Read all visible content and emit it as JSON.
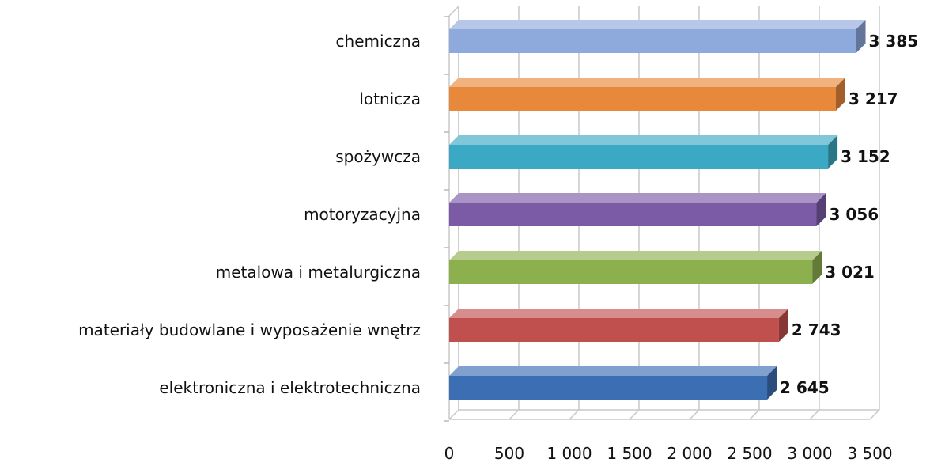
{
  "chart_data": {
    "type": "bar",
    "orientation": "horizontal",
    "style": "3d",
    "categories": [
      "chemiczna",
      "lotnicza",
      "spożywcza",
      "motoryzacyjna",
      "metalowa i metalurgiczna",
      "materiały budowlane i wyposażenie wnętrz",
      "elektroniczna i elektrotechniczna"
    ],
    "values": [
      3385,
      3217,
      3152,
      3056,
      3021,
      2743,
      2645
    ],
    "value_labels": [
      "3 385",
      "3 217",
      "3 152",
      "3 056",
      "3 021",
      "2 743",
      "2 645"
    ],
    "bar_colors": [
      "#8EA9DB",
      "#E8883A",
      "#3BA9C4",
      "#7B5AA6",
      "#8DB04E",
      "#C0504D",
      "#3C6EB4"
    ],
    "xlim": [
      0,
      3500
    ],
    "xticks": [
      0,
      500,
      1000,
      1500,
      2000,
      2500,
      3000,
      3500
    ],
    "xtick_labels": [
      "0",
      "500",
      "1 000",
      "1 500",
      "2 000",
      "2 500",
      "3 000",
      "3 500"
    ],
    "grid": true,
    "legend": false,
    "title": "",
    "xlabel": "",
    "ylabel": ""
  }
}
